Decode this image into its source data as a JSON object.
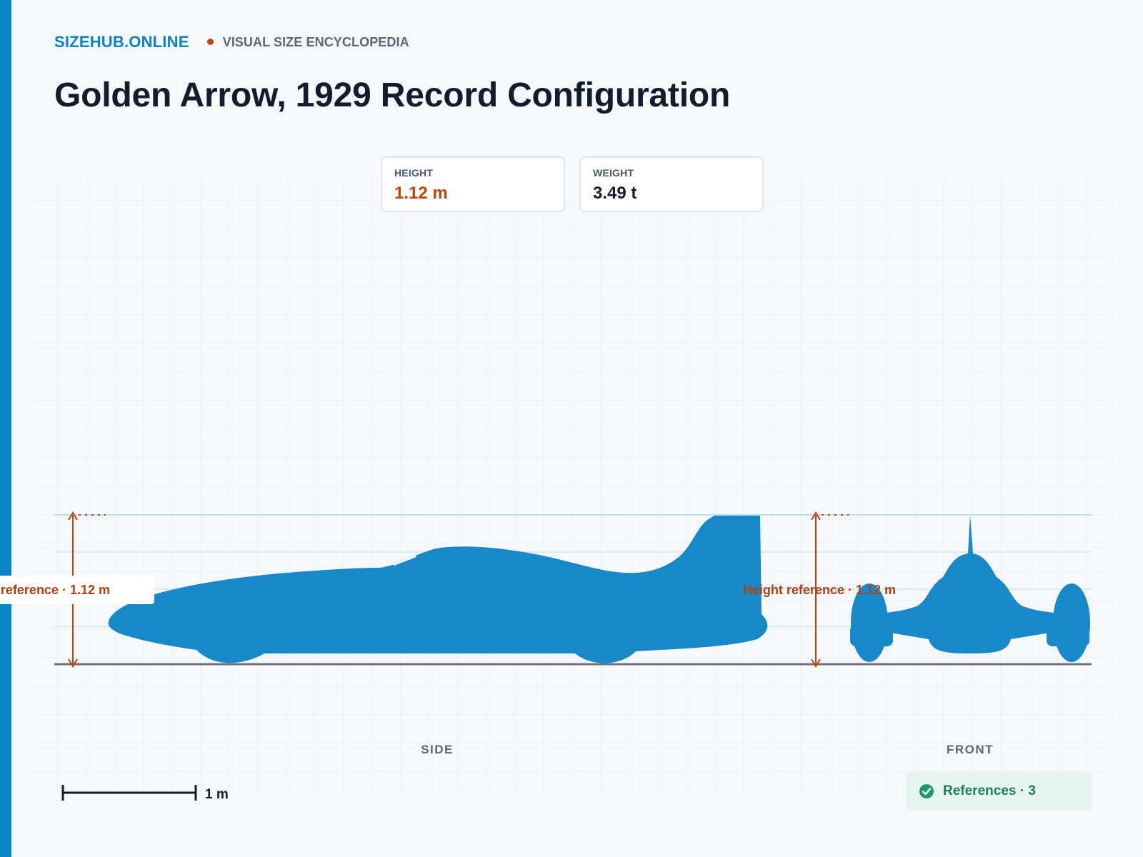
{
  "header": {
    "brand": "SIZEHUB.ONLINE",
    "tagline": "VISUAL SIZE ENCYCLOPEDIA"
  },
  "page": {
    "title": "Golden Arrow, 1929 Record Configuration"
  },
  "stats": [
    {
      "label": "HEIGHT",
      "value": "1.12 m",
      "color": "#c2410c"
    },
    {
      "label": "WEIGHT",
      "value": "3.49 t",
      "color": "#111c2e"
    }
  ],
  "figure": {
    "side_label": "SIDE",
    "front_label": "FRONT",
    "height_reference_label": "Height reference · 1.12 m",
    "height_m": 1.12,
    "scale_bar_label": "1 m",
    "silhouette_color": "#1789c8",
    "reference_color": "#c2410c"
  },
  "references": {
    "label": "References · 3",
    "icon": "check-circle-icon"
  },
  "colors": {
    "accent": "#0984c8",
    "marker": "#c2410c",
    "title": "#111c2e",
    "success": "#1a7f5a"
  }
}
